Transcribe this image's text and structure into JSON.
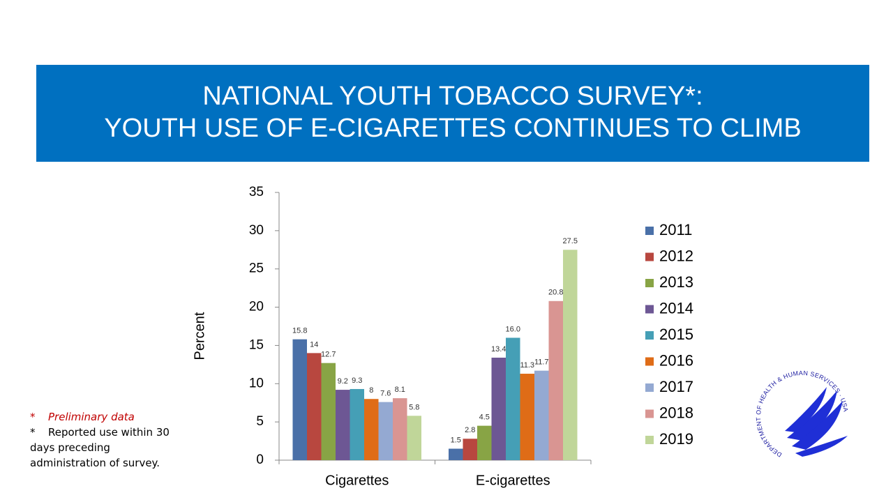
{
  "chart_data": {
    "type": "bar",
    "title": "NATIONAL YOUTH TOBACCO SURVEY*:",
    "subtitle": "YOUTH USE OF E-CIGARETTES CONTINUES TO CLIMB",
    "y_label": "Percent",
    "categories": [
      "Cigarettes",
      "E-cigarettes"
    ],
    "series": [
      {
        "name": "2011",
        "color": "#4a70a8",
        "values": [
          15.8,
          1.5
        ]
      },
      {
        "name": "2012",
        "color": "#b8473f",
        "values": [
          14,
          2.8
        ]
      },
      {
        "name": "2013",
        "color": "#88a445",
        "values": [
          12.7,
          4.5
        ]
      },
      {
        "name": "2014",
        "color": "#6d5794",
        "values": [
          9.2,
          13.4
        ]
      },
      {
        "name": "2015",
        "color": "#459fb6",
        "values": [
          9.3,
          16
        ],
        "value_labels": [
          "9.3",
          "16.0"
        ]
      },
      {
        "name": "2016",
        "color": "#df6c17",
        "values": [
          8,
          11.3
        ]
      },
      {
        "name": "2017",
        "color": "#94a9d2",
        "values": [
          7.6,
          11.7
        ]
      },
      {
        "name": "2018",
        "color": "#d99592",
        "values": [
          8.1,
          20.8
        ]
      },
      {
        "name": "2019",
        "color": "#c0d699",
        "values": [
          5.8,
          27.5
        ]
      }
    ],
    "ylim": [
      0,
      35
    ],
    "yticks": [
      0,
      5,
      10,
      15,
      20,
      25,
      30,
      35
    ],
    "grid": false,
    "legend": "right"
  },
  "notes": [
    {
      "marker": "*",
      "text": "Preliminary data"
    },
    {
      "marker": "*",
      "text": "Reported use within 30 days preceding administration of survey."
    }
  ],
  "logo_text": "DEPARTMENT OF HEALTH & HUMAN SERVICES · USA"
}
